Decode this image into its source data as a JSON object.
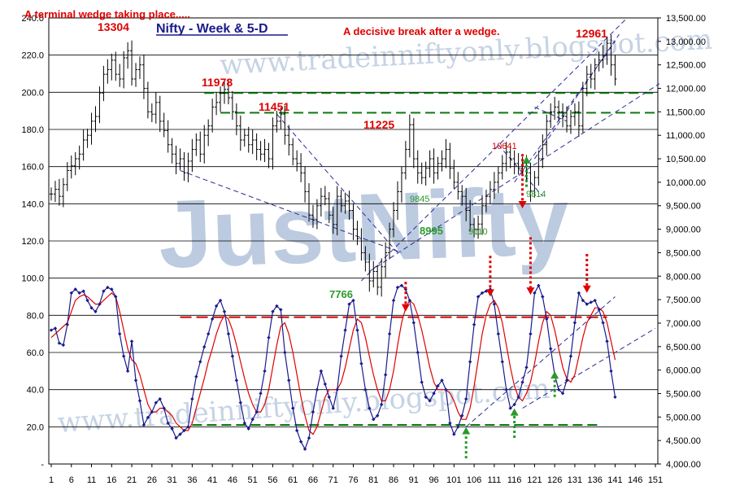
{
  "chart_data": {
    "type": "line",
    "title": "Nifty - Week &  5-D",
    "colors": {
      "price_bars": "#000000",
      "oscillator_line": "#1a1a8c",
      "oscillator_signal": "#e00000",
      "support_lines": "#0a7a0a",
      "resistance_line": "#cc0000",
      "trend_lines": "#2a2a9a",
      "red_annotation": "#e00000",
      "green_annotation": "#2a9a2a",
      "watermark": "#b8c8dc"
    },
    "x_axis": {
      "ticks": [
        "1",
        "6",
        "11",
        "16",
        "21",
        "26",
        "31",
        "36",
        "41",
        "46",
        "51",
        "56",
        "61",
        "66",
        "71",
        "76",
        "81",
        "86",
        "91",
        "96",
        "101",
        "106",
        "111",
        "116",
        "121",
        "126",
        "131",
        "136",
        "141",
        "146",
        "151"
      ],
      "range": [
        1,
        151
      ]
    },
    "left_axis": {
      "ticks": [
        "240.0",
        "220.0",
        "200.0",
        "180.0",
        "160.0",
        "140.0",
        "120.0",
        "100.0",
        "80.0",
        "60.0",
        "40.0",
        "20.0",
        "-"
      ],
      "range": [
        0,
        240
      ]
    },
    "right_axis": {
      "ticks": [
        "13,500.00",
        "13,000.00",
        "12,500.00",
        "12,000.00",
        "11,500.00",
        "11,000.00",
        "10,500.00",
        "10,000.00",
        "9,500.00",
        "9,000.00",
        "8,500.00",
        "8,000.00",
        "7,500.00",
        "7,000.00",
        "6,500.00",
        "6,000.00",
        "5,500.00",
        "5,000.00",
        "4,500.00",
        "4,000.00"
      ],
      "range": [
        4000,
        13500
      ]
    },
    "grid": "horizontal",
    "price_series": {
      "name": "Nifty weekly",
      "x": [
        1,
        2,
        3,
        4,
        5,
        6,
        7,
        8,
        9,
        10,
        11,
        12,
        13,
        14,
        15,
        16,
        17,
        18,
        19,
        20,
        21,
        22,
        23,
        24,
        25,
        26,
        27,
        28,
        29,
        30,
        31,
        32,
        33,
        34,
        35,
        36,
        37,
        38,
        39,
        40,
        41,
        42,
        43,
        44,
        45,
        46,
        47,
        48,
        49,
        50,
        51,
        52,
        53,
        54,
        55,
        56,
        57,
        58,
        59,
        60,
        61,
        62,
        63,
        64,
        65,
        66,
        67,
        68,
        69,
        70,
        71,
        72,
        73,
        74,
        75,
        76,
        77,
        78,
        79,
        80,
        81,
        82,
        83,
        84,
        85,
        86,
        87,
        88,
        89,
        90,
        91,
        92,
        93,
        94,
        95,
        96,
        97,
        98,
        99,
        100,
        101,
        102,
        103,
        104,
        105,
        106,
        107,
        108,
        109,
        110,
        111,
        112,
        113,
        114,
        115,
        116,
        117,
        118,
        119,
        120,
        121,
        122,
        123,
        124,
        125,
        126,
        127,
        128,
        129,
        130,
        131,
        132,
        133,
        134,
        135,
        136,
        137,
        138,
        139,
        140,
        141
      ],
      "close": [
        9750,
        9850,
        9700,
        9950,
        10250,
        10350,
        10500,
        10600,
        10900,
        11000,
        11300,
        11400,
        11900,
        12300,
        12400,
        12600,
        12300,
        12200,
        12650,
        12800,
        12200,
        12400,
        12500,
        12000,
        11500,
        11450,
        11700,
        11300,
        11100,
        10800,
        10600,
        10400,
        10500,
        10200,
        10450,
        10700,
        10900,
        10600,
        11000,
        11200,
        11600,
        11700,
        11900,
        11978,
        11800,
        11500,
        11200,
        10900,
        11000,
        10800,
        10900,
        10700,
        10600,
        10700,
        10500,
        11200,
        11300,
        11451,
        11000,
        10800,
        10500,
        10400,
        10200,
        9800,
        9300,
        9200,
        9500,
        9700,
        9650,
        9300,
        9100,
        9700,
        9500,
        9600,
        9400,
        9000,
        8800,
        8500,
        8300,
        7900,
        8100,
        7766,
        8200,
        8500,
        9000,
        9400,
        9800,
        10200,
        10700,
        11225,
        10500,
        10200,
        10100,
        10300,
        10500,
        10200,
        10400,
        10500,
        10700,
        10300,
        10000,
        9800,
        9700,
        9400,
        9100,
        8995,
        9110,
        9500,
        9700,
        9845,
        10000,
        10200,
        10400,
        10641,
        10500,
        10400,
        10300,
        10400,
        10200,
        9814,
        10100,
        10500,
        10800,
        11300,
        11500,
        11600,
        11500,
        11400,
        11200,
        11400,
        11500,
        11200,
        12000,
        12300,
        12200,
        12500,
        12600,
        12700,
        12961,
        12500,
        12200
      ],
      "highlights": {
        "peak_13304": 13304,
        "peak_11978": 11978,
        "peak_11451": 11451,
        "peak_11225": 11225,
        "peak_10641": 10641,
        "peak_12961": 12961,
        "low_7766": 7766,
        "low_8995": 8995,
        "low_9110": 9110,
        "low_9845": 9845,
        "low_9814": 9814
      }
    },
    "oscillator_series": {
      "name": "5-D oscillator",
      "x": [
        1,
        2,
        3,
        4,
        5,
        6,
        7,
        8,
        9,
        10,
        11,
        12,
        13,
        14,
        15,
        16,
        17,
        18,
        19,
        20,
        21,
        22,
        23,
        24,
        25,
        26,
        27,
        28,
        29,
        30,
        31,
        32,
        33,
        34,
        35,
        36,
        37,
        38,
        39,
        40,
        41,
        42,
        43,
        44,
        45,
        46,
        47,
        48,
        49,
        50,
        51,
        52,
        53,
        54,
        55,
        56,
        57,
        58,
        59,
        60,
        61,
        62,
        63,
        64,
        65,
        66,
        67,
        68,
        69,
        70,
        71,
        72,
        73,
        74,
        75,
        76,
        77,
        78,
        79,
        80,
        81,
        82,
        83,
        84,
        85,
        86,
        87,
        88,
        89,
        90,
        91,
        92,
        93,
        94,
        95,
        96,
        97,
        98,
        99,
        100,
        101,
        102,
        103,
        104,
        105,
        106,
        107,
        108,
        109,
        110,
        111,
        112,
        113,
        114,
        115,
        116,
        117,
        118,
        119,
        120,
        121,
        122,
        123,
        124,
        125,
        126,
        127,
        128,
        129,
        130,
        131,
        132,
        133,
        134,
        135,
        136,
        137,
        138,
        139,
        140,
        141
      ],
      "values": [
        72,
        73,
        65,
        64,
        75,
        92,
        94,
        92,
        93,
        88,
        84,
        82,
        86,
        93,
        95,
        94,
        90,
        70,
        58,
        50,
        66,
        45,
        34,
        21,
        25,
        28,
        33,
        35,
        30,
        22,
        19,
        14,
        16,
        18,
        20,
        35,
        47,
        55,
        63,
        70,
        78,
        85,
        88,
        82,
        70,
        58,
        45,
        33,
        22,
        19,
        24,
        28,
        38,
        50,
        68,
        82,
        85,
        83,
        60,
        45,
        30,
        18,
        12,
        8,
        14,
        28,
        40,
        50,
        43,
        36,
        30,
        40,
        58,
        72,
        86,
        88,
        72,
        54,
        40,
        30,
        24,
        26,
        32,
        48,
        70,
        88,
        95,
        96,
        94,
        88,
        76,
        60,
        44,
        36,
        34,
        38,
        42,
        45,
        40,
        22,
        16,
        20,
        26,
        35,
        55,
        75,
        90,
        92,
        93,
        94,
        86,
        70,
        55,
        40,
        30,
        32,
        36,
        44,
        52,
        70,
        92,
        96,
        90,
        78,
        62,
        48,
        40,
        38,
        45,
        58,
        76,
        92,
        88,
        86,
        87,
        88,
        83,
        76,
        66,
        50,
        36
      ],
      "signal": [
        68,
        70,
        72,
        74,
        76,
        82,
        88,
        90,
        91,
        90,
        88,
        86,
        86,
        88,
        90,
        92,
        90,
        82,
        72,
        62,
        56,
        54,
        48,
        40,
        32,
        28,
        28,
        30,
        30,
        28,
        26,
        22,
        20,
        18,
        18,
        22,
        30,
        38,
        46,
        55,
        62,
        70,
        76,
        80,
        78,
        72,
        64,
        55,
        46,
        38,
        32,
        28,
        28,
        32,
        40,
        52,
        64,
        74,
        76,
        70,
        60,
        48,
        36,
        26,
        18,
        16,
        20,
        28,
        36,
        40,
        40,
        40,
        44,
        52,
        62,
        72,
        78,
        76,
        68,
        58,
        48,
        40,
        34,
        34,
        40,
        50,
        64,
        76,
        84,
        88,
        86,
        80,
        72,
        62,
        52,
        44,
        40,
        40,
        40,
        38,
        34,
        28,
        24,
        24,
        30,
        42,
        56,
        70,
        80,
        86,
        88,
        84,
        76,
        64,
        52,
        42,
        36,
        34,
        38,
        44,
        54,
        66,
        76,
        82,
        80,
        72,
        62,
        52,
        46,
        44,
        48,
        58,
        68,
        76,
        80,
        84,
        84,
        82,
        76,
        66,
        56
      ]
    },
    "annotations": {
      "title_text": "A terminal wedge taking place.....",
      "break_text": "A decisive break after a wedge.",
      "l_13304": "13304",
      "l_11978": "11978",
      "l_11451": "11451",
      "l_11225": "11225",
      "l_10641": "10641",
      "l_12961": "12961",
      "l_7766": "7766",
      "l_8995": "8995",
      "l_9110": "9110",
      "l_9845": "9845",
      "l_9814": "9814"
    },
    "watermark": {
      "logo": "JustNifty",
      "url": "www.tradeinniftyonly.blogspot.com"
    }
  }
}
